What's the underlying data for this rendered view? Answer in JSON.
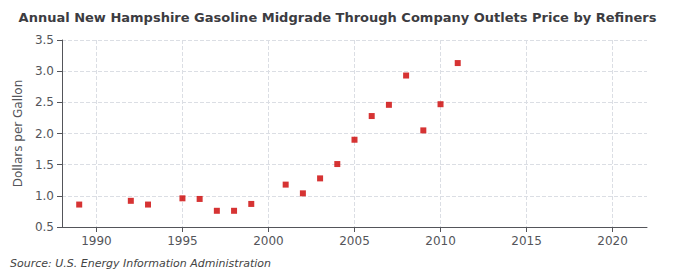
{
  "chart_data": {
    "type": "scatter",
    "title": "Annual New Hampshire Gasoline Midgrade Through Company Outlets Price by Refiners",
    "ylabel": "Dollars per Gallon",
    "annotation": "Source: U.S. Energy Information Administration",
    "x": [
      1989,
      1992,
      1993,
      1995,
      1996,
      1997,
      1998,
      1999,
      2001,
      2002,
      2003,
      2004,
      2005,
      2006,
      2007,
      2008,
      2009,
      2010,
      2011
    ],
    "values": [
      0.86,
      0.92,
      0.86,
      0.96,
      0.95,
      0.76,
      0.76,
      0.87,
      1.18,
      1.04,
      1.28,
      1.51,
      1.9,
      2.28,
      2.46,
      2.93,
      2.05,
      2.47,
      3.13
    ],
    "color": "#cc0000",
    "marker": "square",
    "xlim": [
      1988,
      2022
    ],
    "xticks": [
      1990,
      1995,
      2000,
      2005,
      2010,
      2015,
      2020
    ],
    "ylim": [
      0.5,
      3.5
    ],
    "yticks": [
      0.5,
      {
        "value": 1,
        "label": "1.0"
      },
      1.5,
      {
        "value": 2,
        "label": "2.0"
      },
      2.5,
      {
        "value": 3,
        "label": "3.0"
      },
      3.5
    ],
    "grid": true
  }
}
